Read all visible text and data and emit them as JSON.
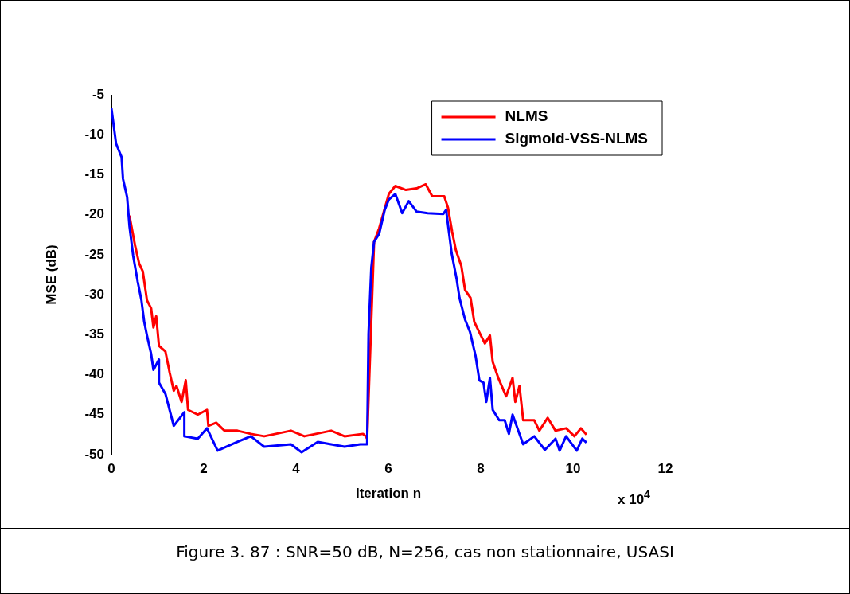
{
  "chart_data": {
    "type": "line",
    "xlabel": "Iteration n",
    "ylabel": "MSE (dB)",
    "xlim": [
      0,
      12
    ],
    "xticks": [
      0,
      2,
      4,
      6,
      8,
      10,
      12
    ],
    "ylim": [
      -50,
      -5
    ],
    "yticks": [
      -50,
      -45,
      -40,
      -35,
      -30,
      -25,
      -20,
      -15,
      -10,
      -5
    ],
    "grid": false,
    "legend": "top right",
    "marker": "none",
    "line_style": "solid",
    "annotations": [
      "x 10$^{4}$",
      "Figure 3. 87 : SNR=50 dB, N=256, cas non stationnaire, USASI"
    ],
    "series": [
      {
        "name": "NLMS",
        "color": "#ff0000",
        "x": [
          0.39,
          0.51,
          0.6,
          0.68,
          0.77,
          0.86,
          0.91,
          0.97,
          1.03,
          1.17,
          1.26,
          1.35,
          1.41,
          1.52,
          1.61,
          1.66,
          1.87,
          2.07,
          2.1,
          2.27,
          2.45,
          2.73,
          3.02,
          3.31,
          3.89,
          4.18,
          4.76,
          5.05,
          5.45,
          5.51,
          5.54,
          5.57,
          5.63,
          5.69,
          5.8,
          6.01,
          6.15,
          6.38,
          6.61,
          6.81,
          6.95,
          7.21,
          7.29,
          7.38,
          7.46,
          7.58,
          7.66,
          7.78,
          7.86,
          7.97,
          8.09,
          8.2,
          8.26,
          8.38,
          8.55,
          8.69,
          8.75,
          8.84,
          8.92,
          9.16,
          9.27,
          9.45,
          9.62,
          9.85,
          10.03,
          10.17,
          10.29
        ],
        "values": [
          -20.1,
          -23.8,
          -26.1,
          -27.1,
          -30.7,
          -31.7,
          -34.1,
          -32.7,
          -36.4,
          -37.1,
          -39.7,
          -42,
          -41.4,
          -43.4,
          -40.7,
          -44.4,
          -45,
          -44.4,
          -46.4,
          -46,
          -47,
          -47,
          -47.4,
          -47.7,
          -47,
          -47.7,
          -47,
          -47.7,
          -47.4,
          -47.7,
          -48,
          null,
          null,
          -23.4,
          -21.7,
          -17.4,
          -16.4,
          -16.9,
          -16.7,
          -16.2,
          -17.7,
          -17.7,
          -19.1,
          -22.1,
          -24.4,
          -26.4,
          -29.4,
          -30.4,
          -33.4,
          -34.7,
          -36.1,
          -35.1,
          -38.4,
          -40.4,
          -42.7,
          -40.4,
          -43.4,
          -41.4,
          -45.7,
          -45.7,
          -47,
          -45.4,
          -47,
          -46.7,
          -47.7,
          -46.7,
          -47.5
        ]
      },
      {
        "name": "Sigmoid-VSS-NLMS",
        "color": "#0000ff",
        "x": [
          0,
          0.1,
          0.22,
          0.25,
          0.34,
          0.39,
          0.47,
          0.57,
          0.65,
          0.71,
          0.77,
          0.86,
          0.91,
          1.03,
          1.03,
          1.17,
          1.26,
          1.35,
          1.58,
          1.58,
          1.87,
          2.07,
          2.3,
          2.73,
          3.02,
          3.31,
          3.89,
          4.12,
          4.47,
          5.05,
          5.39,
          5.54,
          5.57,
          5.63,
          5.69,
          5.8,
          5.92,
          6.01,
          6.15,
          6.3,
          6.44,
          6.61,
          6.85,
          7.19,
          7.25,
          7.37,
          7.48,
          7.54,
          7.66,
          7.77,
          7.89,
          7.97,
          8.06,
          8.12,
          8.2,
          8.26,
          8.4,
          8.52,
          8.61,
          8.69,
          8.92,
          9.16,
          9.39,
          9.62,
          9.71,
          9.85,
          10.08,
          10.2,
          10.29
        ],
        "values": [
          -6.7,
          -11.1,
          -12.8,
          -15.5,
          -17.8,
          -21.4,
          -25.1,
          -28.4,
          -30.7,
          -33.4,
          -35.1,
          -37.4,
          -39.4,
          -38.1,
          -41,
          -42.4,
          -44.4,
          -46.4,
          -44.7,
          -47.7,
          -48,
          -46.7,
          -49.5,
          -48.4,
          -47.7,
          -49,
          -48.7,
          -49.7,
          -48.4,
          -49,
          -48.7,
          -48.7,
          -34.9,
          -26.6,
          -23.4,
          -22.4,
          -19.4,
          -18.1,
          -17.4,
          -19.8,
          -18.3,
          -19.6,
          -19.8,
          -19.9,
          -19.4,
          -24.8,
          -28.1,
          -30.4,
          -33.1,
          -34.7,
          -37.7,
          -40.7,
          -41,
          -43.4,
          -40.4,
          -44.4,
          -45.7,
          -45.7,
          -47.4,
          -45,
          -48.7,
          -47.7,
          -49.4,
          -48,
          -49.5,
          -47.7,
          -49.5,
          -48,
          -48.5
        ]
      }
    ]
  }
}
